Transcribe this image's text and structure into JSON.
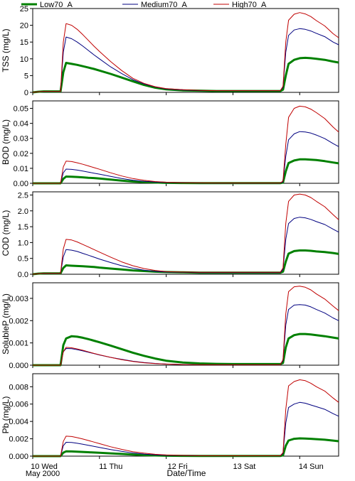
{
  "chart_data": {
    "type": "line",
    "xlabel": "Date/Time",
    "x_range": [
      "2000-05-10T00:00",
      "2000-05-14T14:00"
    ],
    "x_ticks": [
      {
        "t": "2000-05-10T00:00",
        "label": "10 Wed"
      },
      {
        "t": "2000-05-11T00:00",
        "label": "11 Thu"
      },
      {
        "t": "2000-05-12T00:00",
        "label": "12 Fri"
      },
      {
        "t": "2000-05-13T00:00",
        "label": "13 Sat"
      },
      {
        "t": "2000-05-14T00:00",
        "label": "14 Sun"
      }
    ],
    "x_sublabel": "May 2000",
    "legend": {
      "position": "top",
      "entries": [
        {
          "name": "Low70_A",
          "color": "#008000"
        },
        {
          "name": "Medium70_A",
          "color": "#000080"
        },
        {
          "name": "High70_A",
          "color": "#c00000"
        }
      ]
    },
    "x": [
      "2000-05-10T00:00",
      "2000-05-10T02:00",
      "2000-05-10T04:00",
      "2000-05-10T06:00",
      "2000-05-10T08:00",
      "2000-05-10T09:00",
      "2000-05-10T10:00",
      "2000-05-10T11:00",
      "2000-05-10T12:00",
      "2000-05-10T14:00",
      "2000-05-10T16:00",
      "2000-05-10T18:00",
      "2000-05-10T20:00",
      "2000-05-10T22:00",
      "2000-05-11T00:00",
      "2000-05-11T04:00",
      "2000-05-11T08:00",
      "2000-05-11T12:00",
      "2000-05-11T16:00",
      "2000-05-11T20:00",
      "2000-05-12T00:00",
      "2000-05-12T06:00",
      "2000-05-12T12:00",
      "2000-05-12T18:00",
      "2000-05-13T00:00",
      "2000-05-13T06:00",
      "2000-05-13T12:00",
      "2000-05-13T16:00",
      "2000-05-13T17:00",
      "2000-05-13T18:00",
      "2000-05-13T19:00",
      "2000-05-13T20:00",
      "2000-05-13T22:00",
      "2000-05-14T00:00",
      "2000-05-14T02:00",
      "2000-05-14T04:00",
      "2000-05-14T06:00",
      "2000-05-14T09:00",
      "2000-05-14T12:00",
      "2000-05-14T14:00"
    ],
    "panels": [
      {
        "ylabel": "TSS (mg/L)",
        "ylim": [
          0,
          25
        ],
        "yticks": [
          "0",
          "5",
          "10",
          "15",
          "20",
          "25"
        ],
        "series": [
          {
            "name": "Low70_A",
            "values": [
              0,
              0.2,
              0.3,
              0.3,
              0.3,
              0.3,
              0.3,
              6,
              8.8,
              8.5,
              8.2,
              7.8,
              7.4,
              7,
              6.5,
              5.5,
              4.4,
              3.3,
              2.2,
              1.4,
              0.9,
              0.6,
              0.5,
              0.4,
              0.4,
              0.4,
              0.4,
              0.4,
              0.4,
              0.8,
              5,
              8.5,
              9.7,
              10.2,
              10.3,
              10.2,
              10,
              9.7,
              9.2,
              8.9
            ]
          },
          {
            "name": "Medium70_A",
            "values": [
              0,
              0.2,
              0.3,
              0.3,
              0.3,
              0.3,
              0.3,
              12,
              16.5,
              16,
              15,
              13.8,
              12.5,
              11.2,
              10,
              7.6,
              5.6,
              3.8,
              2.5,
              1.6,
              1,
              0.7,
              0.5,
              0.5,
              0.5,
              0.5,
              0.5,
              0.5,
              0.5,
              1.5,
              12,
              17,
              18.6,
              19,
              18.8,
              18.3,
              17.6,
              16.6,
              15,
              14.2
            ]
          },
          {
            "name": "High70_A",
            "values": [
              0,
              0.2,
              0.3,
              0.3,
              0.3,
              0.3,
              0.3,
              15,
              20.5,
              20,
              18.8,
              17.2,
              15.5,
              13.8,
              12.2,
              9.2,
              6.5,
              4.2,
              2.7,
              1.7,
              1.1,
              0.8,
              0.6,
              0.5,
              0.5,
              0.5,
              0.5,
              0.5,
              0.5,
              1.8,
              15,
              21.5,
              23.3,
              23.8,
              23.4,
              22.6,
              21.4,
              19.8,
              17.5,
              16.3
            ]
          }
        ]
      },
      {
        "ylabel": "BOD (mg/L)",
        "ylim": [
          0,
          0.055
        ],
        "yticks": [
          "0.00",
          "0.01",
          "0.02",
          "0.03",
          "0.04",
          "0.05"
        ],
        "series": [
          {
            "name": "Low70_A",
            "values": [
              0,
              0,
              0,
              0,
              0,
              0,
              0,
              0.003,
              0.0045,
              0.0044,
              0.0042,
              0.004,
              0.0037,
              0.0035,
              0.0032,
              0.0025,
              0.0018,
              0.0012,
              0.0008,
              0.0005,
              0.0003,
              0.0002,
              0.0001,
              0.0001,
              0.0001,
              0.0001,
              0.0001,
              0.0001,
              0.0001,
              0.0005,
              0.008,
              0.0135,
              0.0152,
              0.016,
              0.016,
              0.0158,
              0.0155,
              0.0148,
              0.0139,
              0.0133
            ]
          },
          {
            "name": "Medium70_A",
            "values": [
              0,
              0,
              0,
              0,
              0,
              0,
              0,
              0.007,
              0.0095,
              0.0093,
              0.0088,
              0.0082,
              0.0075,
              0.0068,
              0.0061,
              0.0046,
              0.0032,
              0.0021,
              0.0013,
              0.0008,
              0.0005,
              0.0003,
              0.0002,
              0.0001,
              0.0001,
              0.0001,
              0.0001,
              0.0001,
              0.0001,
              0.001,
              0.018,
              0.029,
              0.033,
              0.0345,
              0.0343,
              0.0335,
              0.0322,
              0.0298,
              0.0265,
              0.0245
            ]
          },
          {
            "name": "High70_A",
            "values": [
              0,
              0,
              0,
              0,
              0,
              0,
              0,
              0.011,
              0.0148,
              0.0145,
              0.0137,
              0.0127,
              0.0116,
              0.0105,
              0.0094,
              0.007,
              0.0049,
              0.0032,
              0.002,
              0.0012,
              0.0007,
              0.0004,
              0.0003,
              0.0002,
              0.0002,
              0.0002,
              0.0002,
              0.0002,
              0.0002,
              0.0015,
              0.026,
              0.044,
              0.05,
              0.0515,
              0.051,
              0.0495,
              0.0472,
              0.0432,
              0.0375,
              0.0342
            ]
          }
        ]
      },
      {
        "ylabel": "COD (mg/L)",
        "ylim": [
          0,
          2.6
        ],
        "yticks": [
          "0.0",
          "0.5",
          "1.0",
          "1.5",
          "2.0",
          "2.5"
        ],
        "series": [
          {
            "name": "Low70_A",
            "values": [
              0,
              0.02,
              0.03,
              0.03,
              0.03,
              0.03,
              0.03,
              0.2,
              0.28,
              0.27,
              0.26,
              0.25,
              0.24,
              0.23,
              0.21,
              0.18,
              0.15,
              0.12,
              0.1,
              0.08,
              0.07,
              0.06,
              0.05,
              0.05,
              0.05,
              0.05,
              0.05,
              0.05,
              0.05,
              0.08,
              0.4,
              0.65,
              0.73,
              0.75,
              0.75,
              0.74,
              0.72,
              0.7,
              0.67,
              0.64
            ]
          },
          {
            "name": "Medium70_A",
            "values": [
              0,
              0.02,
              0.03,
              0.03,
              0.03,
              0.03,
              0.03,
              0.55,
              0.78,
              0.76,
              0.72,
              0.66,
              0.6,
              0.54,
              0.48,
              0.37,
              0.27,
              0.19,
              0.13,
              0.09,
              0.07,
              0.06,
              0.05,
              0.05,
              0.05,
              0.05,
              0.05,
              0.05,
              0.05,
              0.15,
              1.1,
              1.6,
              1.76,
              1.8,
              1.78,
              1.73,
              1.66,
              1.57,
              1.42,
              1.33
            ]
          },
          {
            "name": "High70_A",
            "values": [
              0,
              0.02,
              0.03,
              0.03,
              0.03,
              0.03,
              0.03,
              0.8,
              1.1,
              1.08,
              1.02,
              0.94,
              0.86,
              0.78,
              0.7,
              0.54,
              0.39,
              0.27,
              0.18,
              0.12,
              0.08,
              0.07,
              0.06,
              0.06,
              0.06,
              0.06,
              0.06,
              0.06,
              0.06,
              0.2,
              1.6,
              2.3,
              2.5,
              2.53,
              2.5,
              2.42,
              2.3,
              2.13,
              1.88,
              1.72
            ]
          }
        ]
      },
      {
        "ylabel": "SolubleP (mg/L)",
        "ylim": [
          0,
          0.0037
        ],
        "yticks": [
          "0.000",
          "0.001",
          "0.002",
          "0.003"
        ],
        "series": [
          {
            "name": "Low70_A",
            "values": [
              0,
              0,
              0,
              0,
              0,
              0,
              0,
              0.0009,
              0.0012,
              0.0013,
              0.00128,
              0.00123,
              0.00117,
              0.0011,
              0.00103,
              0.00088,
              0.00072,
              0.00056,
              0.00042,
              0.0003,
              0.0002,
              0.00012,
              8e-05,
              6e-05,
              5e-05,
              5e-05,
              5e-05,
              5e-05,
              5e-05,
              0.0001,
              0.0008,
              0.0012,
              0.00135,
              0.0014,
              0.0014,
              0.00138,
              0.00135,
              0.0013,
              0.00124,
              0.0012
            ]
          },
          {
            "name": "Medium70_A",
            "values": [
              0,
              0,
              0,
              0,
              0,
              0,
              0,
              0.0006,
              0.00075,
              0.00074,
              0.0007,
              0.00064,
              0.00058,
              0.00052,
              0.00046,
              0.00035,
              0.00026,
              0.00018,
              0.00012,
              8e-05,
              5e-05,
              3e-05,
              2e-05,
              2e-05,
              2e-05,
              2e-05,
              2e-05,
              2e-05,
              2e-05,
              0.0002,
              0.0018,
              0.0025,
              0.0027,
              0.00272,
              0.0027,
              0.00262,
              0.0025,
              0.00234,
              0.00212,
              0.002
            ]
          },
          {
            "name": "High70_A",
            "values": [
              0,
              0,
              0,
              0,
              0,
              0,
              0,
              0.0006,
              0.0008,
              0.00078,
              0.00073,
              0.00067,
              0.0006,
              0.00053,
              0.00047,
              0.00035,
              0.00025,
              0.00017,
              0.00011,
              7e-05,
              5e-05,
              3e-05,
              2e-05,
              2e-05,
              2e-05,
              2e-05,
              2e-05,
              2e-05,
              2e-05,
              0.00025,
              0.0023,
              0.0033,
              0.00352,
              0.00355,
              0.0035,
              0.00338,
              0.0032,
              0.00297,
              0.00265,
              0.00245
            ]
          }
        ]
      },
      {
        "ylabel": "Pb (mg/L)",
        "ylim": [
          0,
          0.0095
        ],
        "yticks": [
          "0.000",
          "0.002",
          "0.004",
          "0.006",
          "0.008"
        ],
        "series": [
          {
            "name": "Low70_A",
            "values": [
              0,
              0,
              0,
              0,
              0,
              0,
              0,
              0.0004,
              0.00055,
              0.00054,
              0.00051,
              0.00048,
              0.00045,
              0.00042,
              0.00039,
              0.00032,
              0.00025,
              0.00018,
              0.00012,
              8e-05,
              5e-05,
              3e-05,
              2e-05,
              2e-05,
              2e-05,
              2e-05,
              2e-05,
              2e-05,
              2e-05,
              0.0001,
              0.0012,
              0.0018,
              0.002,
              0.00205,
              0.00203,
              0.002,
              0.00196,
              0.00189,
              0.00179,
              0.00172
            ]
          },
          {
            "name": "Medium70_A",
            "values": [
              0,
              0,
              0,
              0,
              0,
              0,
              0,
              0.0012,
              0.0016,
              0.00157,
              0.00148,
              0.00137,
              0.00125,
              0.00113,
              0.001,
              0.00076,
              0.00055,
              0.00037,
              0.00024,
              0.00015,
              9e-05,
              6e-05,
              4e-05,
              3e-05,
              3e-05,
              3e-05,
              3e-05,
              3e-05,
              3e-05,
              0.0003,
              0.0038,
              0.0056,
              0.006,
              0.0062,
              0.0061,
              0.0059,
              0.0057,
              0.0054,
              0.0049,
              0.0046
            ]
          },
          {
            "name": "High70_A",
            "values": [
              0,
              0,
              0,
              0,
              0,
              0,
              0,
              0.0017,
              0.0023,
              0.00226,
              0.00213,
              0.00197,
              0.0018,
              0.00162,
              0.00144,
              0.00108,
              0.00078,
              0.00052,
              0.00034,
              0.00021,
              0.00013,
              8e-05,
              5e-05,
              4e-05,
              4e-05,
              4e-05,
              4e-05,
              4e-05,
              4e-05,
              0.0004,
              0.0054,
              0.0081,
              0.0086,
              0.0088,
              0.0087,
              0.0084,
              0.008,
              0.0075,
              0.0067,
              0.0062
            ]
          }
        ]
      }
    ]
  }
}
